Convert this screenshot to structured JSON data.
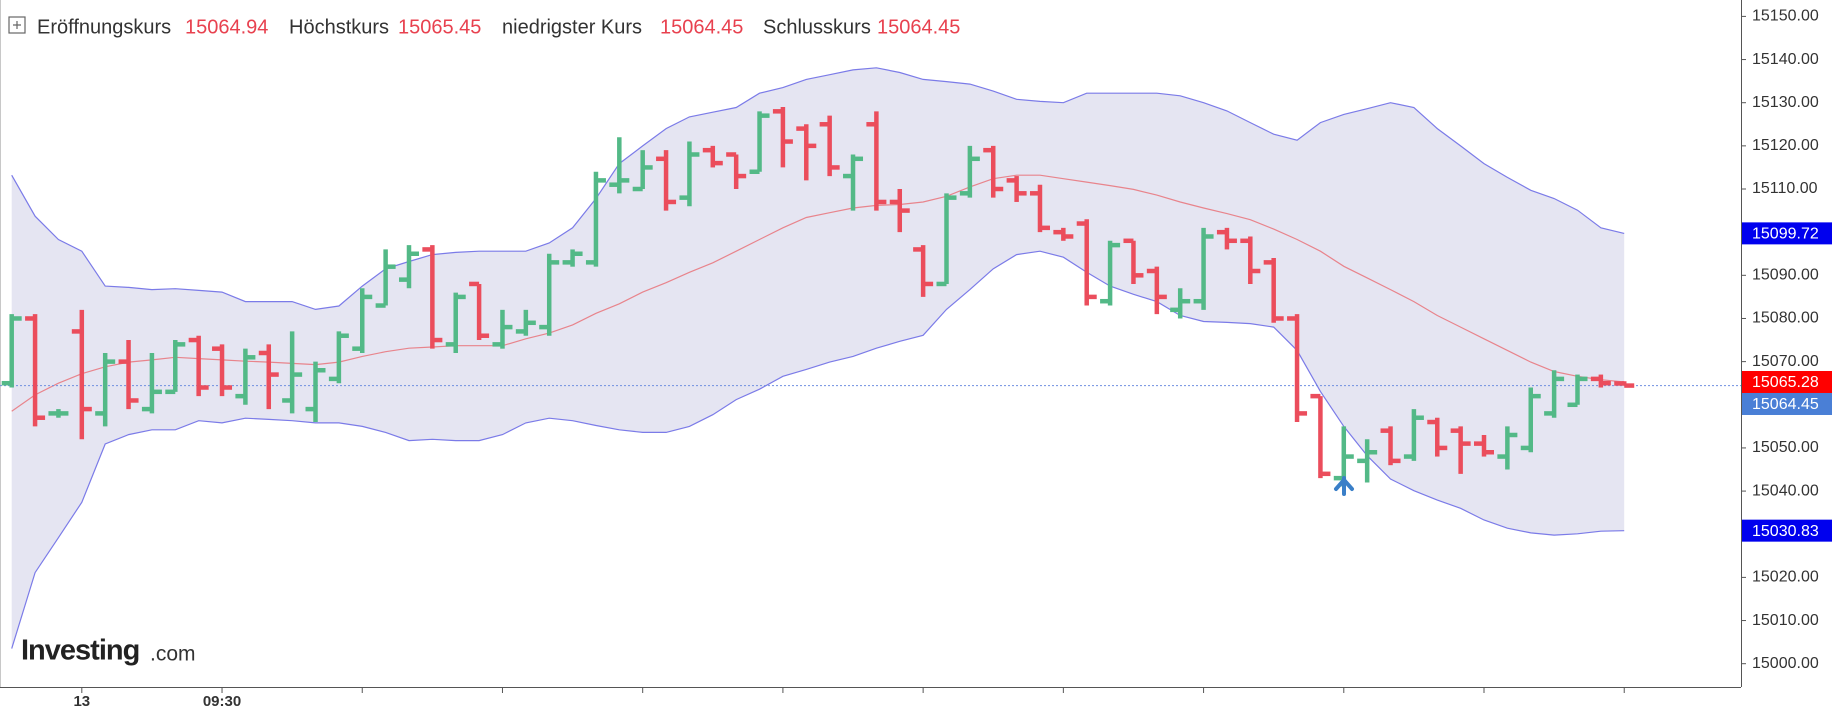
{
  "chart_data": {
    "type": "ohlc",
    "header": {
      "open_label": "Eröffnungskurs",
      "open": 15064.94,
      "high_label": "Höchstkurs",
      "high": 15065.45,
      "low_label": "niedrigster Kurs",
      "low": 15064.45,
      "close_label": "Schlusskurs",
      "close": 15064.45,
      "label_color": "#333333",
      "value_color": "#e8414f"
    },
    "watermark": {
      "brand": "Investing",
      "suffix": ".com"
    },
    "categories": [
      null,
      null,
      null,
      "13",
      null,
      null,
      null,
      null,
      null,
      "09:30",
      null,
      null,
      null,
      null,
      null,
      null,
      null,
      null,
      null,
      null,
      null,
      null,
      null,
      null,
      null,
      null,
      null,
      null,
      null,
      null,
      null,
      null,
      null,
      null,
      null,
      null,
      null,
      null,
      null,
      null,
      null,
      null,
      null,
      null,
      null,
      null,
      null,
      null,
      null,
      null,
      null,
      null,
      null,
      null,
      null,
      null,
      null,
      null,
      null,
      null,
      null,
      null,
      null,
      null,
      null,
      null,
      null,
      null,
      null,
      null
    ],
    "open": [
      15065,
      15080,
      15058,
      15077,
      15058,
      15070,
      15059,
      15063,
      15075,
      15073,
      15062,
      15072,
      15061,
      15059,
      15066,
      15073,
      15083,
      15089,
      15096,
      15074,
      15088,
      15074,
      15077,
      15078,
      15093,
      15093,
      15111,
      15110,
      15117,
      15108,
      15119,
      15118,
      15114,
      15128,
      15124,
      15125,
      15113,
      15125,
      15107,
      15096,
      15088,
      15109,
      15119,
      15112,
      15109,
      15100,
      15102,
      15084,
      15098,
      15091,
      15082,
      15084,
      15100,
      15098,
      15093,
      15080,
      15062,
      15043,
      15047,
      15054,
      15048,
      15056,
      15054,
      15051,
      15048,
      15050,
      15058,
      15060,
      15066,
      15064.94
    ],
    "high": [
      15081,
      15081,
      15059,
      15082,
      15072,
      15075,
      15072,
      15075,
      15076,
      15074,
      15073,
      15074,
      15077,
      15070,
      15077,
      15087,
      15096,
      15097,
      15097,
      15086,
      15088,
      15082,
      15082,
      15095,
      15096,
      15114,
      15122,
      15119,
      15119,
      15121,
      15120,
      15118,
      15128,
      15129,
      15125,
      15127,
      15118,
      15128,
      15110,
      15097,
      15109,
      15120,
      15120,
      15113,
      15111,
      15101,
      15103,
      15098,
      15098,
      15092,
      15087,
      15101,
      15101,
      15099,
      15094,
      15081,
      15062,
      15055,
      15052,
      15055,
      15059,
      15057,
      15055,
      15053,
      15055,
      15064,
      15068,
      15067,
      15067,
      15065.45
    ],
    "low": [
      15064,
      15055,
      15057,
      15052,
      15055,
      15059,
      15058,
      15063,
      15062,
      15062,
      15060,
      15059,
      15058,
      15056,
      15065,
      15072,
      15083,
      15087,
      15073,
      15072,
      15075,
      15073,
      15076,
      15076,
      15092,
      15092,
      15109,
      15110,
      15105,
      15106,
      15115,
      15110,
      15114,
      15115,
      15112,
      15113,
      15105,
      15105,
      15100,
      15085,
      15088,
      15108,
      15108,
      15107,
      15100,
      15098,
      15083,
      15083,
      15088,
      15081,
      15080,
      15082,
      15096,
      15088,
      15079,
      15056,
      15043,
      15041,
      15042,
      15046,
      15047,
      15048,
      15044,
      15048,
      15045,
      15049,
      15057,
      15060,
      15064,
      15064.45
    ],
    "close": [
      15080,
      15057,
      15058,
      15059,
      15070,
      15061,
      15063,
      15074,
      15064,
      15064,
      15071,
      15067,
      15067,
      15068,
      15076,
      15085,
      15092,
      15095,
      15075,
      15085,
      15076,
      15078,
      15079,
      15093,
      15095,
      15112,
      15112,
      15115,
      15107,
      15118,
      15116,
      15113,
      15127,
      15121,
      15120,
      15115,
      15117,
      15107,
      15105,
      15088,
      15108,
      15117,
      15110,
      15109,
      15101,
      15099,
      15085,
      15097,
      15090,
      15085,
      15084,
      15099,
      15098,
      15091,
      15080,
      15058,
      15044,
      15048,
      15049,
      15047,
      15057,
      15050,
      15051,
      15049,
      15053,
      15062,
      15066,
      15066,
      15065,
      15064.45
    ],
    "up_color": "#53b987",
    "down_color": "#eb4d5c",
    "bands": {
      "upper": [
        15113.2,
        15103.7,
        15098.3,
        15095.6,
        15087.5,
        15087.2,
        15086.7,
        15086.9,
        15086.5,
        15086.1,
        15083.9,
        15083.9,
        15083.9,
        15082.1,
        15082.9,
        15087.5,
        15091.5,
        15093.2,
        15094.8,
        15095.3,
        15095.6,
        15095.6,
        15095.6,
        15097.5,
        15101.0,
        15107.8,
        15115.9,
        15120.0,
        15124.0,
        15126.7,
        15127.8,
        15128.9,
        15132.2,
        15133.5,
        15135.4,
        15136.5,
        15137.6,
        15138.1,
        15137.0,
        15135.4,
        15134.9,
        15134.3,
        15132.7,
        15130.8,
        15130.3,
        15130.0,
        15132.2,
        15132.2,
        15132.2,
        15132.2,
        15131.6,
        15130.0,
        15128.1,
        15125.4,
        15122.7,
        15121.3,
        15125.4,
        15127.3,
        15128.6,
        15130.0,
        15128.9,
        15124.0,
        15120.0,
        15115.9,
        15112.7,
        15109.7,
        15107.8,
        15105.1,
        15101.0,
        15099.72
      ],
      "middle": [
        15058.5,
        15062.3,
        15065.0,
        15067.2,
        15068.8,
        15069.9,
        15070.4,
        15071.0,
        15070.7,
        15070.4,
        15070.1,
        15069.9,
        15069.6,
        15069.3,
        15069.9,
        15071.2,
        15072.3,
        15073.1,
        15073.4,
        15073.7,
        15073.7,
        15073.7,
        15075.3,
        15076.6,
        15078.5,
        15081.2,
        15083.4,
        15086.1,
        15088.3,
        15090.7,
        15092.9,
        15095.6,
        15098.3,
        15101.0,
        15103.4,
        15104.5,
        15105.6,
        15106.2,
        15106.4,
        15107.0,
        15108.3,
        15110.5,
        15112.4,
        15113.2,
        15113.2,
        15112.4,
        15111.6,
        15110.8,
        15109.9,
        15108.6,
        15107.0,
        15105.6,
        15104.3,
        15102.9,
        15100.7,
        15098.3,
        15095.6,
        15092.1,
        15089.4,
        15086.7,
        15083.9,
        15080.7,
        15078.0,
        15075.3,
        15072.6,
        15069.9,
        15067.7,
        15066.6,
        15065.8,
        15065.28
      ],
      "lower": [
        15003.5,
        15021.1,
        15029.2,
        15037.4,
        15050.9,
        15053.1,
        15054.2,
        15054.2,
        15056.3,
        15055.8,
        15056.9,
        15056.6,
        15056.3,
        15055.8,
        15055.8,
        15055.0,
        15053.6,
        15051.7,
        15052.0,
        15051.7,
        15051.7,
        15053.1,
        15055.8,
        15056.9,
        15056.3,
        15055.2,
        15054.2,
        15053.6,
        15053.6,
        15055.0,
        15057.7,
        15061.2,
        15063.6,
        15066.6,
        15068.2,
        15069.9,
        15071.2,
        15073.1,
        15074.7,
        15076.1,
        15082.1,
        15086.7,
        15091.5,
        15094.8,
        15095.6,
        15094.2,
        15090.7,
        15087.5,
        15085.6,
        15083.9,
        15080.7,
        15079.3,
        15079.1,
        15078.8,
        15078.0,
        15072.6,
        15063.1,
        15055.0,
        15048.2,
        15042.8,
        15040.1,
        15037.9,
        15036.0,
        15033.3,
        15031.4,
        15030.3,
        15029.8,
        15030.1,
        15030.7,
        15030.83
      ],
      "line_color": "#7b7be8",
      "middle_color": "#e8848c",
      "fill": "#e5e5f2"
    },
    "last_price": 15064.45,
    "last_price_color": "#6f8fe0",
    "price_tags": [
      {
        "value": 15099.72,
        "color": "#0000ee"
      },
      {
        "value": 15065.28,
        "color": "#ff0000"
      },
      {
        "value": 15064.45,
        "color": "#4a7fd6"
      },
      {
        "value": 15030.83,
        "color": "#0000ee"
      }
    ],
    "ylim": [
      14994.6,
      15153.8
    ],
    "yticks": [
      {
        "value": 15000,
        "label": "15000.00"
      },
      {
        "value": 15010,
        "label": "15010.00"
      },
      {
        "value": 15020,
        "label": "15020.00"
      },
      {
        "value": 15030,
        "label": "15030.00"
      },
      {
        "value": 15040,
        "label": "15040.00"
      },
      {
        "value": 15050,
        "label": "15050.00"
      },
      {
        "value": 15060,
        "label": "15060.00"
      },
      {
        "value": 15070,
        "label": "15070.00"
      },
      {
        "value": 15080,
        "label": "15080.00"
      },
      {
        "value": 15090,
        "label": "15090.00"
      },
      {
        "value": 15100,
        "label": "15100.00"
      },
      {
        "value": 15110,
        "label": "15110.00"
      },
      {
        "value": 15120,
        "label": "15120.00"
      },
      {
        "value": 15130,
        "label": "15130.00"
      },
      {
        "value": 15140,
        "label": "15140.00"
      },
      {
        "value": 15150,
        "label": "15150.00"
      }
    ],
    "grid": false
  }
}
